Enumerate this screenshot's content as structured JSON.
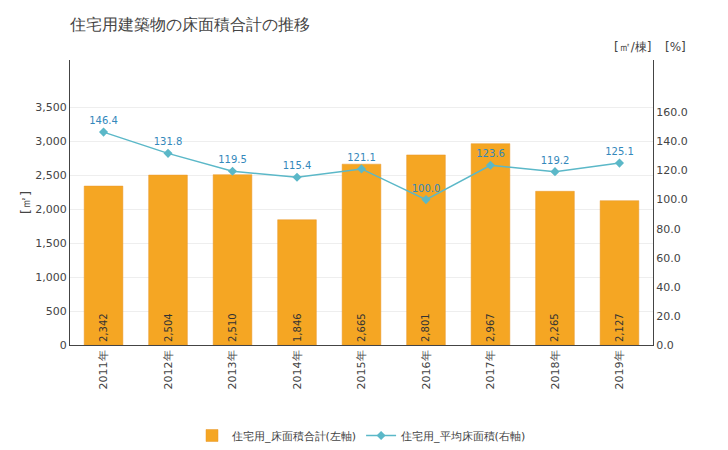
{
  "chart_data": {
    "type": "bar",
    "title": "住宅用建築物の床面積合計の推移",
    "categories": [
      "2011年",
      "2012年",
      "2013年",
      "2014年",
      "2015年",
      "2016年",
      "2017年",
      "2018年",
      "2019年"
    ],
    "series": [
      {
        "name": "住宅用_床面積合計(左軸)",
        "type": "bar",
        "color": "#F5A623",
        "values": [
          2342,
          2504,
          2510,
          1846,
          2665,
          2801,
          2967,
          2265,
          2127
        ],
        "value_labels": [
          "2,342",
          "2,504",
          "2,510",
          "1,846",
          "2,665",
          "2,801",
          "2,967",
          "2,265",
          "2,127"
        ]
      },
      {
        "name": "住宅用_平均床面積(右軸)",
        "type": "line",
        "axis": "y2",
        "color": "#5BB8C8",
        "marker": "diamond",
        "values": [
          146.4,
          131.8,
          119.5,
          115.4,
          121.1,
          100.0,
          123.6,
          119.2,
          125.1
        ],
        "value_labels": [
          "146.4",
          "131.8",
          "119.5",
          "115.4",
          "121.1",
          "100.0",
          "123.6",
          "119.2",
          "125.1"
        ]
      }
    ],
    "ylabel": "[㎡]",
    "y2label": "[㎡/棟]",
    "annotations": [
      "[%]"
    ],
    "ylim": [
      0,
      4200
    ],
    "yticks": [
      0,
      500,
      {
        "value": 1000,
        "label": "1,000"
      },
      {
        "value": 1500,
        "label": "1,500"
      },
      {
        "value": 2000,
        "label": "2,000"
      },
      {
        "value": 2500,
        "label": "2,500"
      },
      {
        "value": 3000,
        "label": "3,000"
      },
      {
        "value": 3500,
        "label": "3,500"
      }
    ],
    "y2lim": [
      0,
      196
    ],
    "y2ticks": [
      {
        "value": 0,
        "label": "0.0"
      },
      {
        "value": 20,
        "label": "20.0"
      },
      {
        "value": 40,
        "label": "40.0"
      },
      {
        "value": 60,
        "label": "60.0"
      },
      {
        "value": 80,
        "label": "80.0"
      },
      {
        "value": 100,
        "label": "100.0"
      },
      {
        "value": 120,
        "label": "120.0"
      },
      {
        "value": 140,
        "label": "140.0"
      },
      {
        "value": 160,
        "label": "160.0"
      }
    ],
    "grid": true,
    "legend": "bottom",
    "data_labels": true
  }
}
